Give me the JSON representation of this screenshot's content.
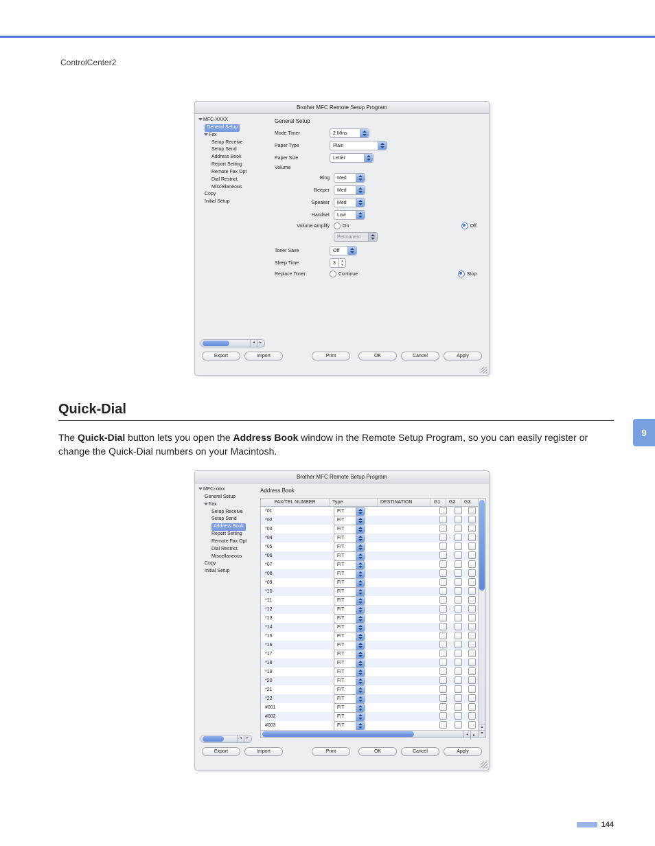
{
  "breadcrumb": "ControlCenter2",
  "section_number": "9",
  "page_number": "144",
  "heading_quickdial": "Quick-Dial",
  "para_quickdial_pre": "The ",
  "para_quickdial_b1": "Quick-Dial",
  "para_quickdial_mid": " button lets you open the ",
  "para_quickdial_b2": "Address Book",
  "para_quickdial_post": " window in the Remote Setup Program, so you can easily register or change the Quick-Dial numbers on your Macintosh.",
  "shot1": {
    "title": "Brother MFC Remote Setup Program",
    "tree_root": "MFC-XXXX",
    "tree_sel": "General Setup",
    "tree": [
      "Fax",
      "Setup Receive",
      "Setup Send",
      "Address Book",
      "Report Setting",
      "Remote Fax Opt",
      "Dial Restrict.",
      "Miscellaneous",
      "Copy",
      "Initial Setup"
    ],
    "pane_title": "General Setup",
    "rows": {
      "mode_timer": {
        "label": "Mode Timer",
        "value": "2 Mins"
      },
      "paper_type": {
        "label": "Paper Type",
        "value": "Plain"
      },
      "paper_size": {
        "label": "Paper Size",
        "value": "Letter"
      },
      "volume": {
        "label": "Volume"
      },
      "ring": {
        "label": "Ring",
        "value": "Med"
      },
      "beeper": {
        "label": "Beeper",
        "value": "Med"
      },
      "speaker": {
        "label": "Speaker",
        "value": "Med"
      },
      "handset": {
        "label": "Handset",
        "value": "Low"
      },
      "vol_amp": {
        "label": "Volume Amplify",
        "on": "On",
        "off": "Off"
      },
      "permanent": {
        "value": "Permanent"
      },
      "toner_save": {
        "label": "Toner Save",
        "value": "Off"
      },
      "sleep": {
        "label": "Sleep Time",
        "value": "3"
      },
      "replace": {
        "label": "Replace Toner",
        "cont": "Continue",
        "stop": "Stop"
      }
    },
    "buttons": {
      "export": "Export",
      "import": "Import",
      "print": "Print",
      "ok": "OK",
      "cancel": "Cancel",
      "apply": "Apply"
    }
  },
  "shot2": {
    "title": "Brother MFC Remote Setup Program",
    "tree_root": "MFC-xxxx",
    "tree_gs": "General Setup",
    "tree_sel": "Address Book",
    "tree": [
      "Fax",
      "Setup Receive",
      "Setup Send",
      "Address Book",
      "Report Setting",
      "Remote Fax Opt",
      "Dial Restrict.",
      "Miscellaneous",
      "Copy",
      "Initial Setup"
    ],
    "pane_title": "Address Book",
    "columns": {
      "fax": "FAX/TEL NUMBER",
      "type": "Type",
      "dest": "DESTINATION",
      "g1": "G1",
      "g2": "G2",
      "g3": "G3"
    },
    "type_val": "F/T",
    "ids": [
      "*01",
      "*02",
      "*03",
      "*04",
      "*05",
      "*06",
      "*07",
      "*08",
      "*09",
      "*10",
      "*11",
      "*12",
      "*13",
      "*14",
      "*15",
      "*16",
      "*17",
      "*18",
      "*19",
      "*20",
      "*21",
      "*22",
      "#001",
      "#002",
      "#003"
    ],
    "buttons": {
      "export": "Export",
      "import": "Import",
      "print": "Print",
      "ok": "OK",
      "cancel": "Cancel",
      "apply": "Apply"
    }
  }
}
